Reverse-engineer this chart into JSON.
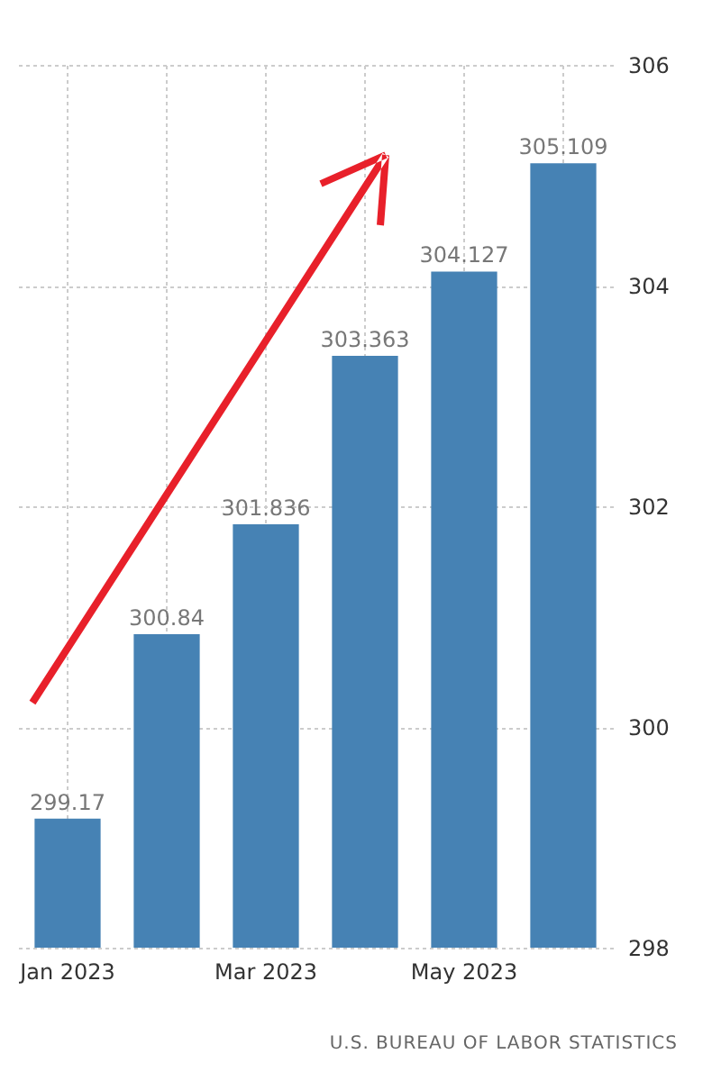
{
  "chart_data": {
    "type": "bar",
    "categories": [
      "Jan 2023",
      null,
      "Mar 2023",
      null,
      "May 2023",
      null
    ],
    "values": [
      299.17,
      300.84,
      301.836,
      303.363,
      304.127,
      305.109
    ],
    "color": "#4682b4",
    "ylim": [
      298,
      306
    ],
    "yticks": [
      298,
      300,
      302,
      304,
      306
    ],
    "grid": true,
    "data_labels": true,
    "annotations": [
      "U.S. BUREAU OF LABOR STATISTICS"
    ]
  }
}
